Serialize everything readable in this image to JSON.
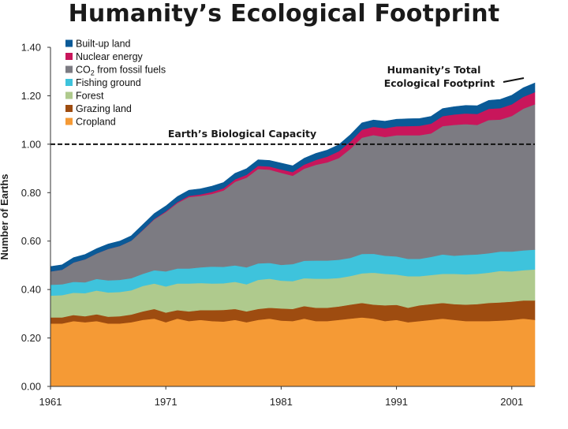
{
  "title": "Humanity’s Ecological Footprint",
  "chart_data": {
    "type": "area",
    "stacked": true,
    "title": "Humanity’s Ecological Footprint",
    "xlabel": "",
    "ylabel": "Number of Earths",
    "xlim": [
      1961,
      2003
    ],
    "ylim": [
      0,
      1.4
    ],
    "x_ticks": [
      "1961",
      "1971",
      "1981",
      "1991",
      "2001"
    ],
    "y_ticks": [
      "0.00",
      "0.20",
      "0.40",
      "0.60",
      "0.80",
      "1.00",
      "1.20",
      "1.40"
    ],
    "x": [
      1961,
      1962,
      1963,
      1964,
      1965,
      1966,
      1967,
      1968,
      1969,
      1970,
      1971,
      1972,
      1973,
      1974,
      1975,
      1976,
      1977,
      1978,
      1979,
      1980,
      1981,
      1982,
      1983,
      1984,
      1985,
      1986,
      1987,
      1988,
      1989,
      1990,
      1991,
      1992,
      1993,
      1994,
      1995,
      1996,
      1997,
      1998,
      1999,
      2000,
      2001,
      2002,
      2003
    ],
    "series": [
      {
        "name": "Cropland",
        "color": "#f59a35",
        "values": [
          0.26,
          0.26,
          0.27,
          0.265,
          0.27,
          0.26,
          0.26,
          0.265,
          0.275,
          0.28,
          0.265,
          0.28,
          0.27,
          0.275,
          0.27,
          0.268,
          0.275,
          0.265,
          0.275,
          0.28,
          0.272,
          0.27,
          0.28,
          0.27,
          0.27,
          0.275,
          0.28,
          0.285,
          0.28,
          0.27,
          0.275,
          0.265,
          0.27,
          0.275,
          0.28,
          0.275,
          0.27,
          0.27,
          0.27,
          0.272,
          0.275,
          0.28,
          0.275
        ]
      },
      {
        "name": "Grazing land",
        "color": "#9e4c10",
        "values": [
          0.025,
          0.025,
          0.025,
          0.025,
          0.028,
          0.028,
          0.03,
          0.032,
          0.035,
          0.04,
          0.04,
          0.035,
          0.04,
          0.04,
          0.045,
          0.048,
          0.045,
          0.045,
          0.045,
          0.045,
          0.05,
          0.05,
          0.052,
          0.055,
          0.055,
          0.055,
          0.058,
          0.06,
          0.058,
          0.065,
          0.062,
          0.06,
          0.065,
          0.065,
          0.065,
          0.065,
          0.068,
          0.07,
          0.075,
          0.075,
          0.075,
          0.075,
          0.08
        ]
      },
      {
        "name": "Forest",
        "color": "#afca8d",
        "values": [
          0.09,
          0.092,
          0.092,
          0.095,
          0.098,
          0.1,
          0.1,
          0.1,
          0.105,
          0.105,
          0.108,
          0.11,
          0.115,
          0.112,
          0.11,
          0.11,
          0.112,
          0.112,
          0.12,
          0.12,
          0.115,
          0.115,
          0.115,
          0.12,
          0.12,
          0.118,
          0.118,
          0.122,
          0.132,
          0.13,
          0.125,
          0.13,
          0.12,
          0.12,
          0.12,
          0.125,
          0.125,
          0.125,
          0.125,
          0.13,
          0.125,
          0.125,
          0.128
        ]
      },
      {
        "name": "Fishing ground",
        "color": "#3ec3dc",
        "values": [
          0.045,
          0.045,
          0.045,
          0.045,
          0.048,
          0.05,
          0.05,
          0.05,
          0.05,
          0.055,
          0.062,
          0.062,
          0.062,
          0.065,
          0.07,
          0.068,
          0.068,
          0.07,
          0.068,
          0.065,
          0.065,
          0.07,
          0.072,
          0.075,
          0.075,
          0.075,
          0.075,
          0.08,
          0.078,
          0.075,
          0.075,
          0.072,
          0.072,
          0.075,
          0.08,
          0.075,
          0.08,
          0.08,
          0.08,
          0.08,
          0.082,
          0.082,
          0.082
        ]
      },
      {
        "name": "CO2 from fossil fuels",
        "color": "#7c7b82",
        "values": [
          0.055,
          0.06,
          0.08,
          0.095,
          0.105,
          0.13,
          0.14,
          0.155,
          0.18,
          0.21,
          0.245,
          0.27,
          0.295,
          0.295,
          0.3,
          0.315,
          0.345,
          0.37,
          0.39,
          0.385,
          0.38,
          0.365,
          0.38,
          0.395,
          0.405,
          0.42,
          0.45,
          0.48,
          0.49,
          0.49,
          0.5,
          0.51,
          0.51,
          0.51,
          0.53,
          0.54,
          0.54,
          0.535,
          0.55,
          0.545,
          0.56,
          0.585,
          0.6
        ]
      },
      {
        "name": "Nuclear energy",
        "color": "#c8165b",
        "values": [
          0.0,
          0.0,
          0.0,
          0.0,
          0.0,
          0.0,
          0.0,
          0.0,
          0.001,
          0.002,
          0.003,
          0.004,
          0.005,
          0.006,
          0.008,
          0.009,
          0.01,
          0.012,
          0.013,
          0.013,
          0.014,
          0.015,
          0.017,
          0.02,
          0.024,
          0.028,
          0.03,
          0.033,
          0.034,
          0.036,
          0.037,
          0.038,
          0.039,
          0.04,
          0.041,
          0.043,
          0.044,
          0.045,
          0.046,
          0.047,
          0.048,
          0.049,
          0.05
        ]
      },
      {
        "name": "Built-up land",
        "color": "#0a5a97",
        "values": [
          0.02,
          0.02,
          0.02,
          0.02,
          0.02,
          0.02,
          0.02,
          0.02,
          0.022,
          0.022,
          0.022,
          0.023,
          0.023,
          0.023,
          0.024,
          0.024,
          0.025,
          0.025,
          0.025,
          0.025,
          0.026,
          0.026,
          0.026,
          0.027,
          0.027,
          0.027,
          0.028,
          0.028,
          0.028,
          0.029,
          0.029,
          0.03,
          0.03,
          0.03,
          0.031,
          0.032,
          0.033,
          0.034,
          0.035,
          0.036,
          0.037,
          0.037,
          0.038
        ]
      }
    ],
    "legend_order": [
      "Built-up land",
      "Nuclear energy",
      "CO2 from fossil fuels",
      "Fishing ground",
      "Forest",
      "Grazing land",
      "Cropland"
    ],
    "legend_placement": "top-left",
    "reference_line": {
      "value": 1.0,
      "label": "Earth’s Biological Capacity",
      "style": "dashed"
    },
    "annotations": [
      {
        "text_lines": [
          "Humanity’s Total",
          "Ecological Footprint"
        ],
        "x": 2003,
        "y": 1.255
      }
    ],
    "grid": false
  }
}
